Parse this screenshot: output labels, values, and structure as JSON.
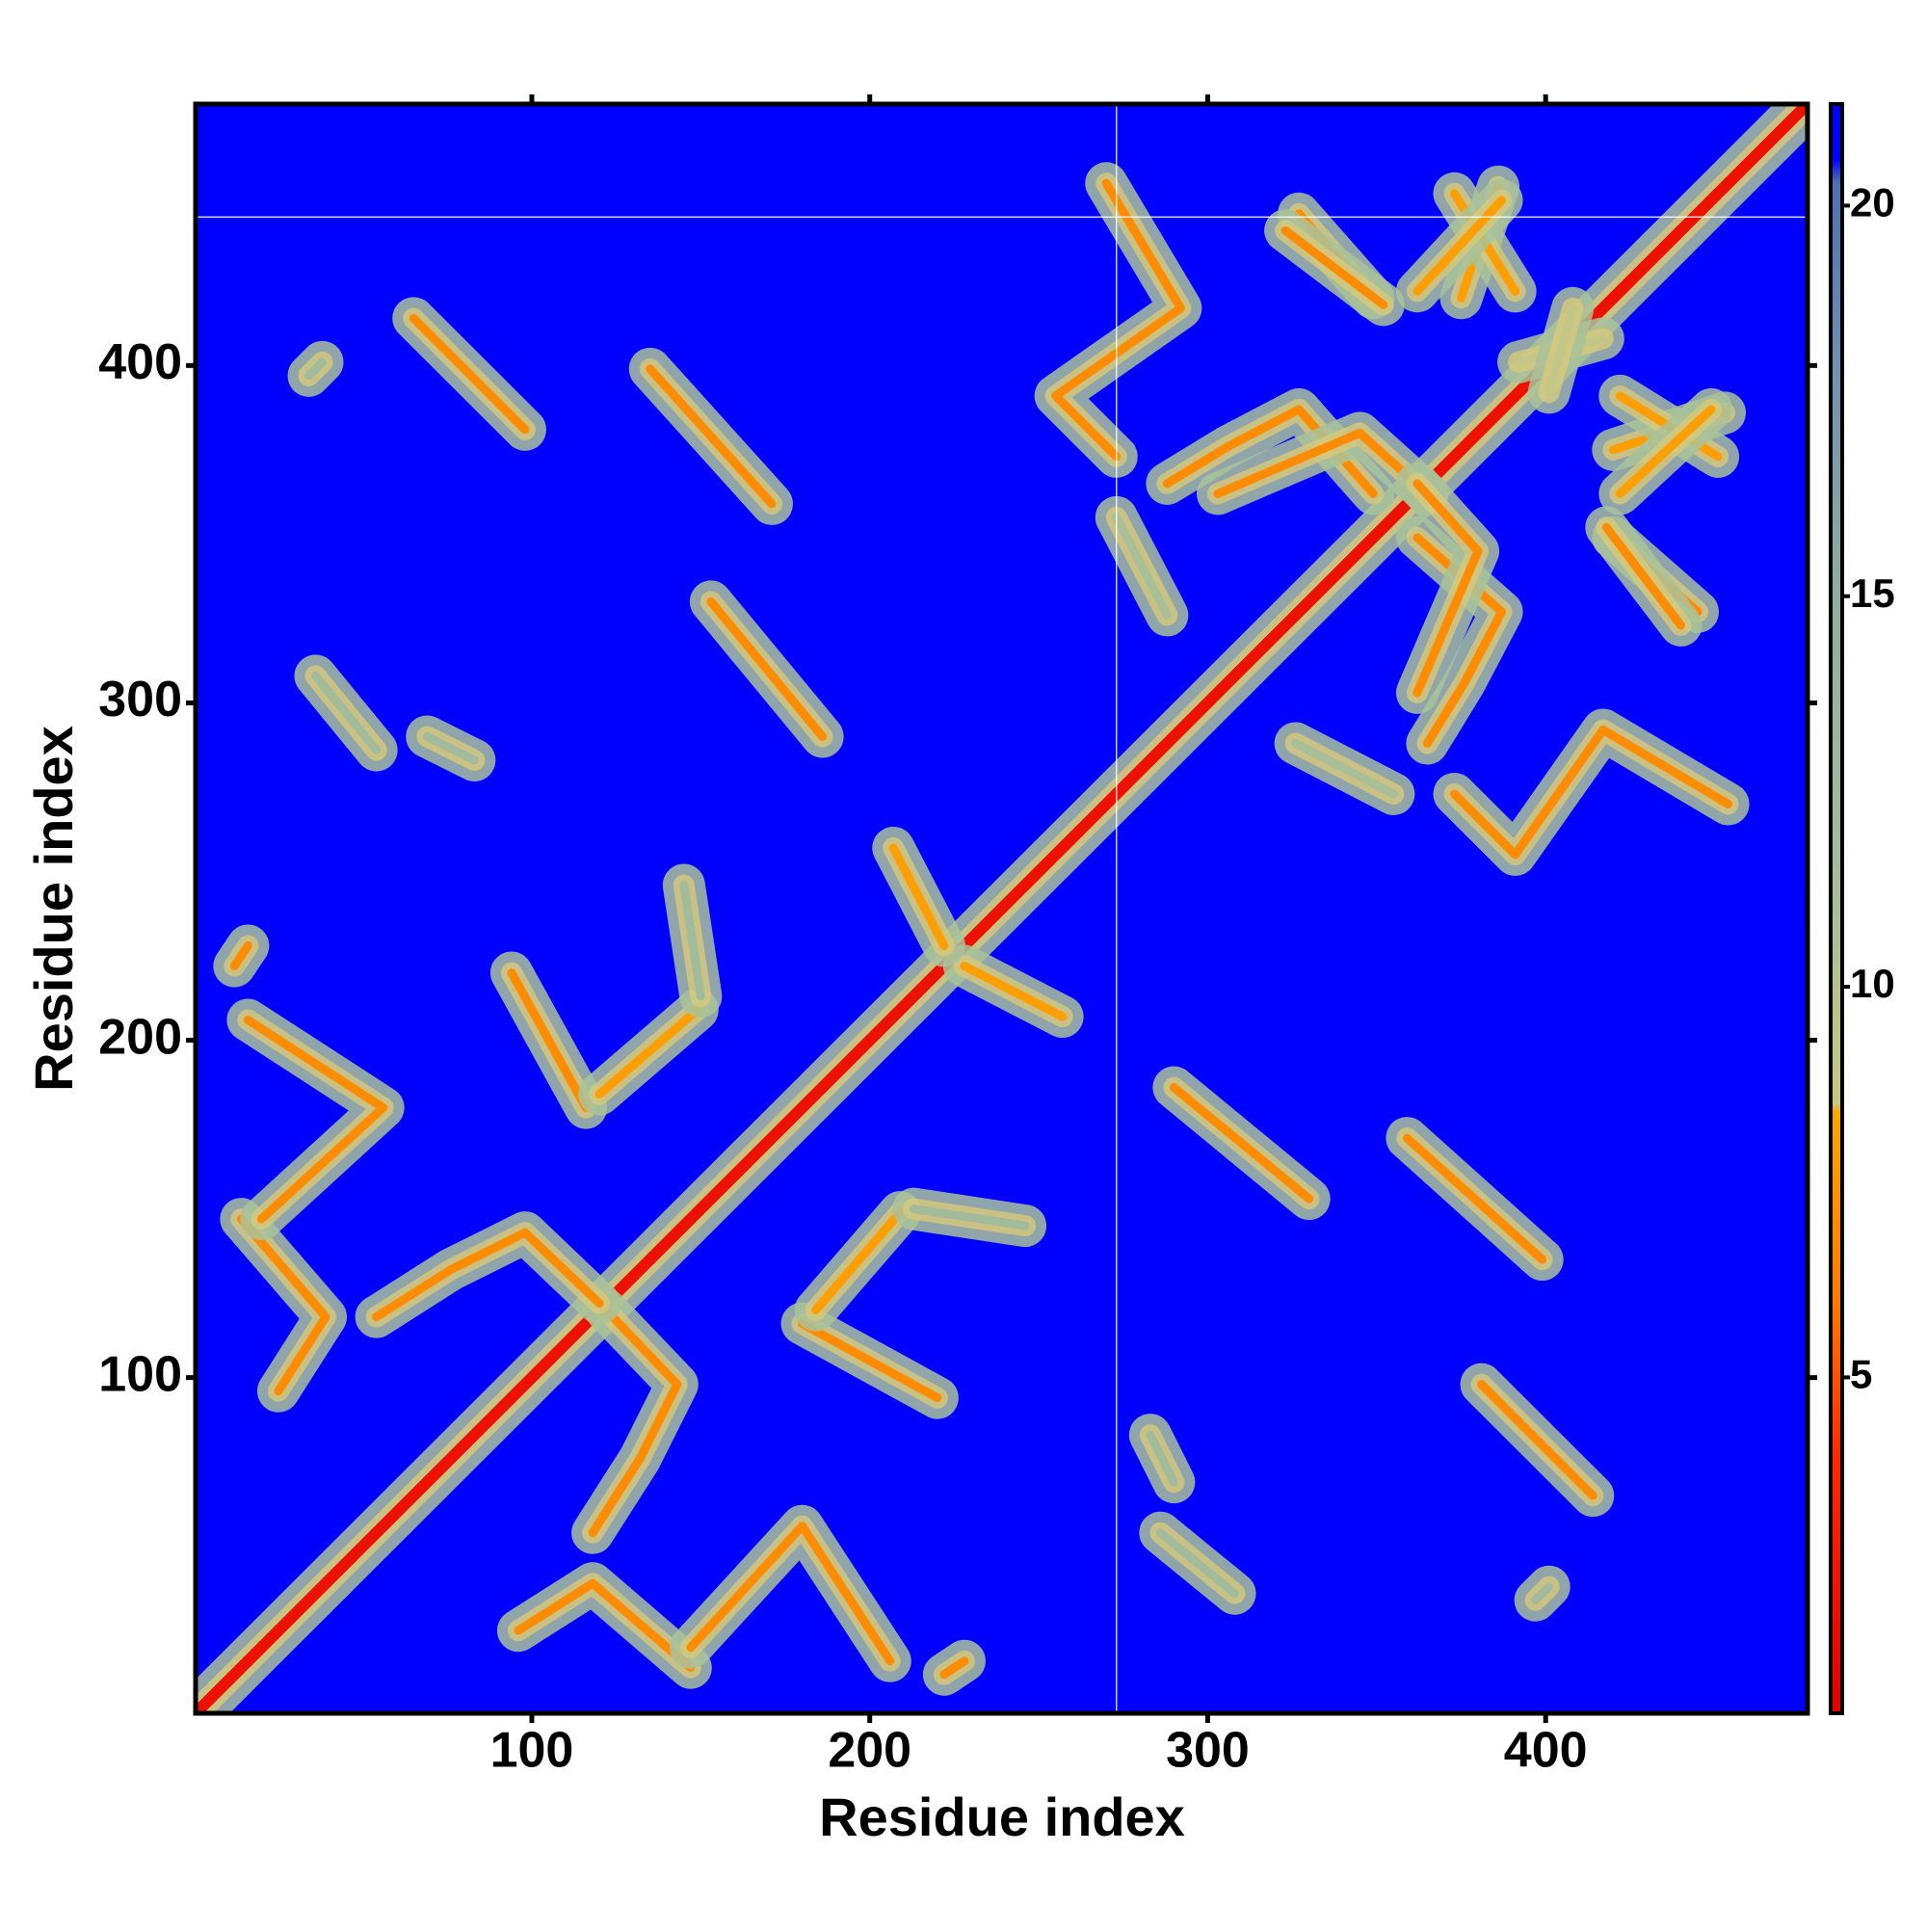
{
  "chart_data": {
    "type": "heatmap",
    "xlabel": "Residue index",
    "ylabel": "Residue index",
    "xlim": [
      0.5,
      477.5
    ],
    "ylim": [
      0.5,
      477.5
    ],
    "xticks": [
      100,
      200,
      300,
      400
    ],
    "yticks": [
      100,
      200,
      300,
      400
    ],
    "symmetric": true,
    "reference_lines": {
      "x": 273,
      "y": 444
    },
    "colorbar": {
      "lim": [
        0.7,
        21.3
      ],
      "ticks": [
        5,
        10,
        15,
        20
      ],
      "stops": [
        {
          "value": 0.7,
          "color": "#e00000"
        },
        {
          "value": 4,
          "color": "#ff2a00"
        },
        {
          "value": 6,
          "color": "#ff7a00"
        },
        {
          "value": 8.4,
          "color": "#ffa500"
        },
        {
          "value": 8.5,
          "color": "#c8c882"
        },
        {
          "value": 11,
          "color": "#a8bf98"
        },
        {
          "value": 15,
          "color": "#8fb0a0"
        },
        {
          "value": 18,
          "color": "#7090b0"
        },
        {
          "value": 20.3,
          "color": "#5070b0"
        },
        {
          "value": 20.6,
          "color": "#0000ff"
        },
        {
          "value": 21.3,
          "color": "#0000ff"
        }
      ]
    },
    "contacts": [
      {
        "x": [
          1,
          477
        ],
        "y": [
          1,
          477
        ],
        "value": 2
      },
      {
        "x": [
          96,
          118,
          147
        ],
        "y": [
          25,
          39,
          14
        ],
        "value": 7
      },
      {
        "x": [
          147,
          180,
          206
        ],
        "y": [
          20,
          56,
          16
        ],
        "value": 7
      },
      {
        "x": [
          222,
          228
        ],
        "y": [
          12,
          16
        ],
        "value": 7
      },
      {
        "x": [
          180,
          220
        ],
        "y": [
          116,
          94
        ],
        "value": 7
      },
      {
        "x": [
          122,
          143,
          132,
          118
        ],
        "y": [
          120,
          98,
          76,
          54
        ],
        "value": 7
      },
      {
        "x": [
          184,
          209
        ],
        "y": [
          120,
          149
        ],
        "value": 8
      },
      {
        "x": [
          213,
          246
        ],
        "y": [
          150,
          145
        ],
        "value": 12
      },
      {
        "x": [
          228,
          257
        ],
        "y": [
          222,
          207
        ],
        "value": 8
      },
      {
        "x": [
          290,
          330
        ],
        "y": [
          186,
          153
        ],
        "value": 7
      },
      {
        "x": [
          359,
          399
        ],
        "y": [
          171,
          135
        ],
        "value": 7
      },
      {
        "x": [
          381,
          414
        ],
        "y": [
          98,
          65
        ],
        "value": 7
      },
      {
        "x": [
          283,
          290
        ],
        "y": [
          83,
          69
        ],
        "value": 12
      },
      {
        "x": [
          286,
          308
        ],
        "y": [
          54,
          36
        ],
        "value": 12
      },
      {
        "x": [
          397,
          401
        ],
        "y": [
          34,
          38
        ],
        "value": 12
      },
      {
        "x": [
          373,
          391,
          417,
          454
        ],
        "y": [
          273,
          255,
          292,
          270
        ],
        "value": 7
      },
      {
        "x": [
          326,
          355
        ],
        "y": [
          288,
          273
        ],
        "value": 11
      },
      {
        "x": [
          362,
          387,
          376,
          365
        ],
        "y": [
          349,
          327,
          306,
          288
        ],
        "value": 7
      },
      {
        "x": [
          420,
          445
        ],
        "y": [
          349,
          327
        ],
        "value": 7
      },
      {
        "x": [
          420,
          453
        ],
        "y": [
          375,
          386
        ],
        "value": 8
      },
      {
        "x": [
          392,
          417
        ],
        "y": [
          401,
          408
        ],
        "value": 9
      },
      {
        "x": [
          323,
          352
        ],
        "y": [
          440,
          418
        ],
        "value": 7
      },
      {
        "x": [
          373,
          391
        ],
        "y": [
          451,
          422
        ],
        "value": 8
      },
      {
        "x": [
          362,
          387
        ],
        "y": [
          422,
          449
        ],
        "value": 8
      },
      {
        "x": [
          303,
          345,
          365
        ],
        "y": [
          362,
          380,
          362
        ],
        "value": 7
      }
    ]
  }
}
